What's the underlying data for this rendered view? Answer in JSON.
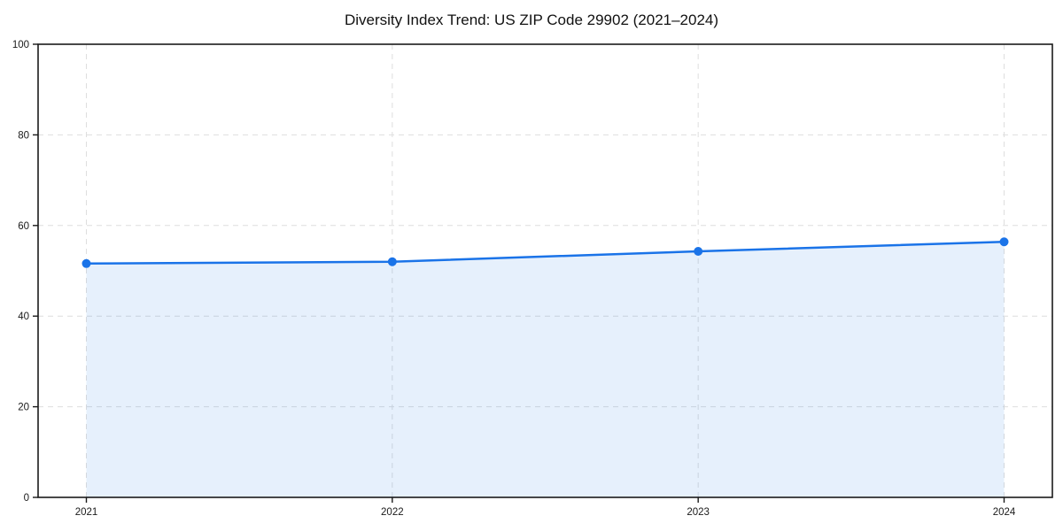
{
  "chart_data": {
    "type": "area",
    "title": "Diversity Index Trend: US ZIP Code 29902 (2021–2024)",
    "categories": [
      "2021",
      "2022",
      "2023",
      "2024"
    ],
    "series": [
      {
        "name": "Diversity Index",
        "values": [
          51.6,
          52.0,
          54.3,
          56.4
        ]
      }
    ],
    "xlabel": "",
    "ylabel": "",
    "ylim": [
      0,
      100
    ],
    "y_ticks": [
      0,
      20,
      40,
      60,
      80,
      100
    ],
    "grid": "dashed-both-axes",
    "legend": "none",
    "marker": "circle",
    "colors": {
      "line": "#1a73e8",
      "marker_fill": "#1a73e8",
      "area_fill": "#1a73e8",
      "area_fill_opacity": 0.11,
      "grid": "#dedede",
      "spine": "#1a1a1a",
      "tick_text": "#1a1a1a",
      "title_text": "#111111",
      "background": "#ffffff"
    }
  }
}
